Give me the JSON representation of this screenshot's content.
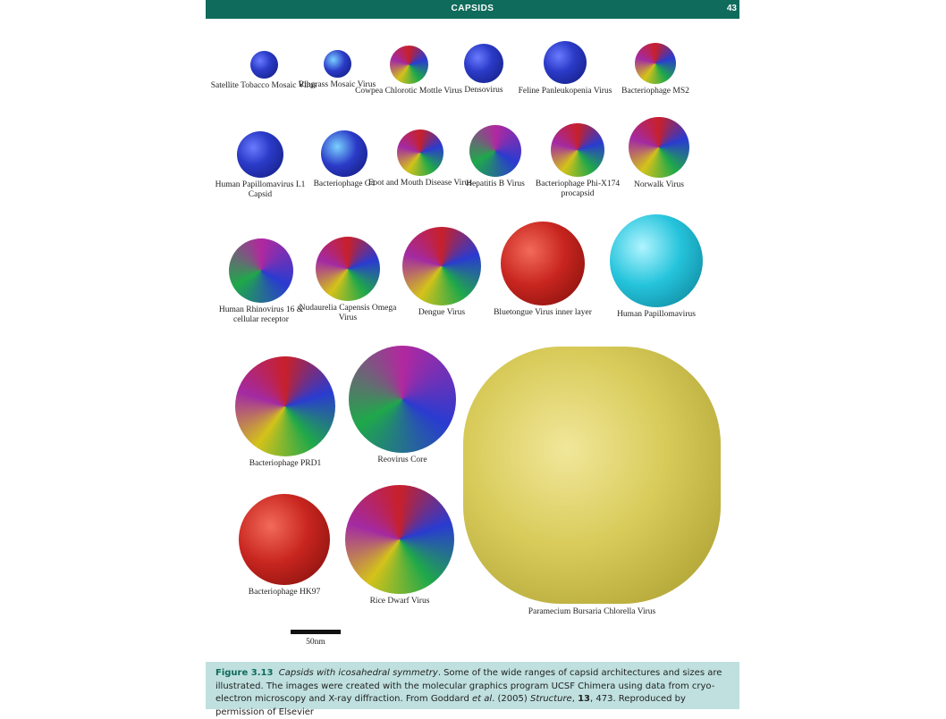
{
  "header": {
    "title": "CAPSIDS",
    "page_number": "43"
  },
  "viruses": [
    {
      "label": "Satellite Tobacco Mosaic Virus"
    },
    {
      "label": "Ribgrass Mosaic Virus"
    },
    {
      "label": "Cowpea Chlorotic Mottle Virus"
    },
    {
      "label": "Densovirus"
    },
    {
      "label": "Feline Panleukopenia Virus"
    },
    {
      "label": "Bacteriophage MS2"
    },
    {
      "label": "Human Papillomavirus L1 Capsid"
    },
    {
      "label": "Bacteriophage G4"
    },
    {
      "label": "Foot and Mouth Disease Virus"
    },
    {
      "label": "Hepatitis B Virus"
    },
    {
      "label": "Bacteriophage Phi-X174 procapsid"
    },
    {
      "label": "Norwalk Virus"
    },
    {
      "label": "Human Rhinovirus 16 & cellular receptor"
    },
    {
      "label": "Nudaurelia Capensis Omega Virus"
    },
    {
      "label": "Dengue Virus"
    },
    {
      "label": "Bluetongue Virus inner layer"
    },
    {
      "label": "Human Papillomavirus"
    },
    {
      "label": "Bacteriophage PRD1"
    },
    {
      "label": "Reovirus Core"
    },
    {
      "label": "Bacteriophage HK97"
    },
    {
      "label": "Rice Dwarf Virus"
    },
    {
      "label": "Paramecium Bursaria Chlorella Virus"
    }
  ],
  "scale": {
    "label": "50nm"
  },
  "caption": {
    "figure": "Figure 3.13",
    "title": "Capsids with icosahedral symmetry",
    "text1": ". Some of the wide ranges of capsid architectures and sizes are illustrated. The images were created with the molecular graphics program UCSF Chimera using data from cryo-electron microscopy and X-ray diffraction. From Goddard ",
    "etal": "et al",
    "text2": ". (2005) ",
    "journal": "Structure",
    "text3": ", ",
    "volume": "13",
    "text4": ", 473. Reproduced by permission of Elsevier"
  },
  "colors": {
    "header_bg": "#0f6b5c",
    "caption_bg": "#bfe0df"
  }
}
